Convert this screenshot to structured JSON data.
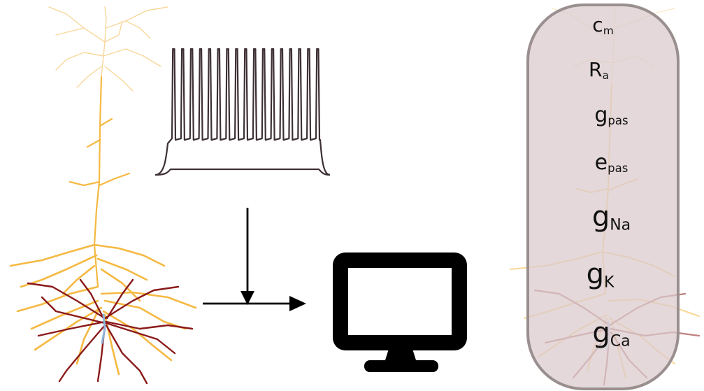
{
  "parameters": [
    {
      "base": "c",
      "sub": "m"
    },
    {
      "base": "R",
      "sub": "a"
    },
    {
      "base": "g",
      "sub": "pas"
    },
    {
      "base": "e",
      "sub": "pas"
    },
    {
      "base": "g",
      "sub": "Na"
    },
    {
      "base": "g",
      "sub": "K"
    },
    {
      "base": "g",
      "sub": "Ca"
    }
  ],
  "icons": {
    "neuron": "neuron-morphology-icon",
    "trace": "voltage-trace-icon",
    "computer": "computer-monitor-icon"
  },
  "colors": {
    "apical": "#f5b942",
    "basal": "#8b1a1a",
    "soma": "#8fb3d9",
    "trace": "#3d3033",
    "panel_fill": "#e2d6d8",
    "panel_stroke": "#9a8f8f",
    "arrow": "#000000"
  },
  "trace": {
    "spike_count": 17
  }
}
